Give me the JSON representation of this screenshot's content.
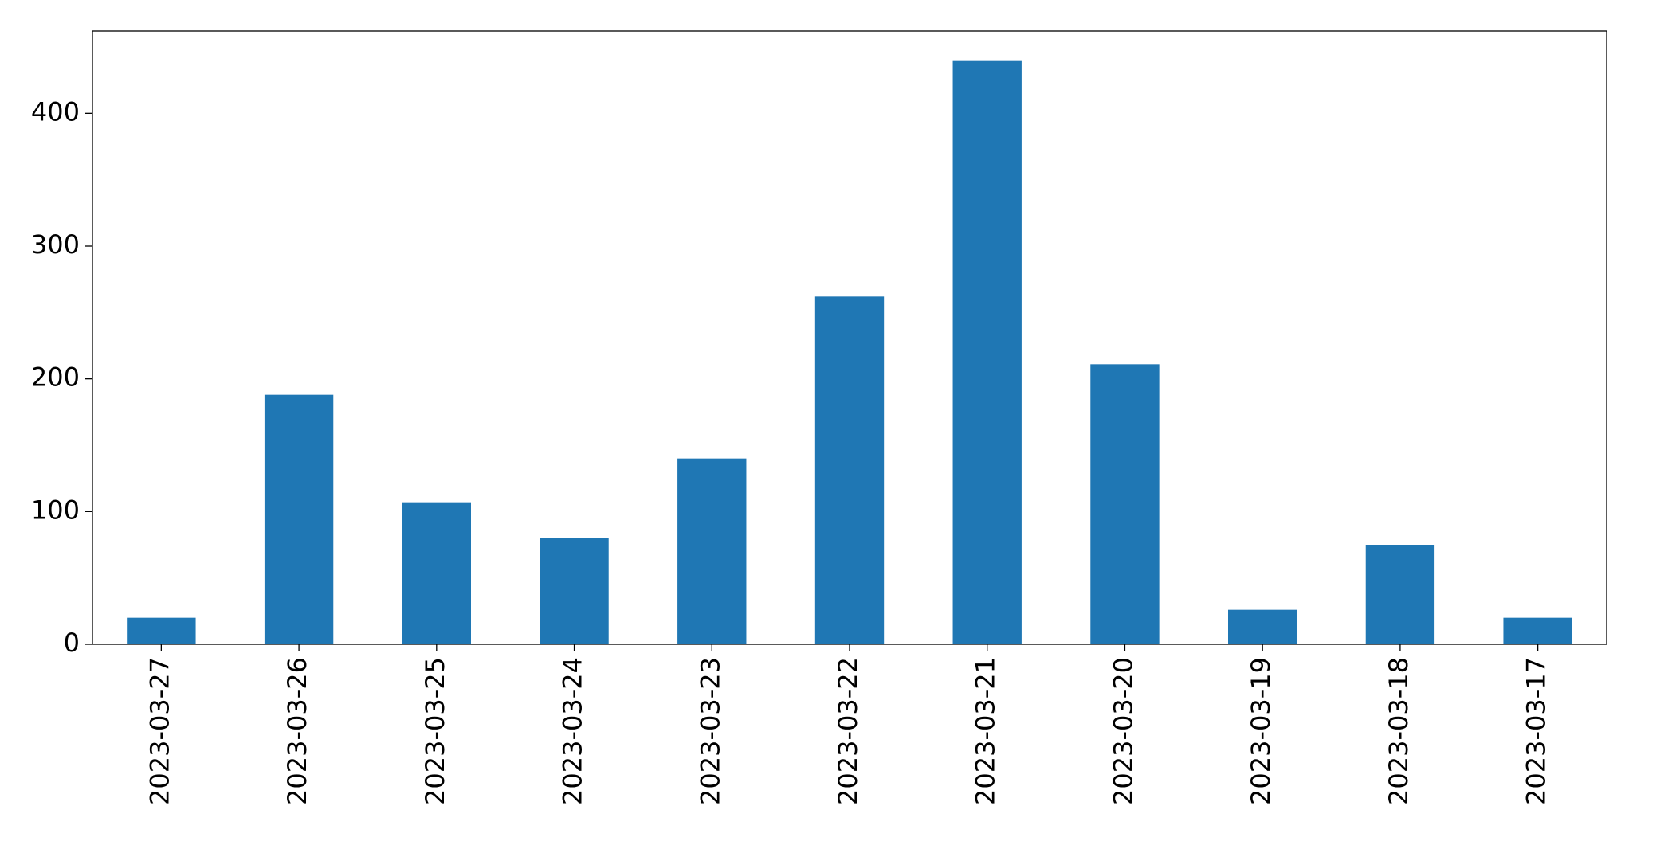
{
  "chart_data": {
    "type": "bar",
    "categories": [
      "2023-03-27",
      "2023-03-26",
      "2023-03-25",
      "2023-03-24",
      "2023-03-23",
      "2023-03-22",
      "2023-03-21",
      "2023-03-20",
      "2023-03-19",
      "2023-03-18",
      "2023-03-17"
    ],
    "values": [
      20,
      188,
      107,
      80,
      140,
      262,
      440,
      211,
      26,
      75,
      20
    ],
    "color": "#1f77b4",
    "ylim": [
      0,
      462
    ],
    "yticks": [
      0,
      100,
      200,
      300,
      400
    ],
    "grid": false
  }
}
